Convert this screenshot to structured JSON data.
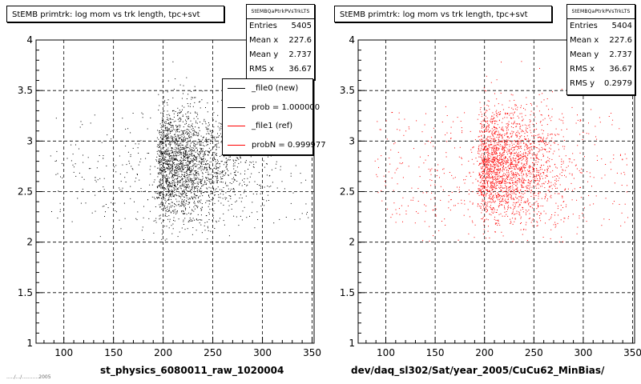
{
  "panels": [
    {
      "title": "StEMB primtrk: log mom vs trk length, tpc+svt",
      "stats_header": "StEMBQaPtrkPVsTrkLTS",
      "stats": [
        {
          "label": "Entries",
          "value": "5405"
        },
        {
          "label": "Mean x",
          "value": "227.6"
        },
        {
          "label": "Mean y",
          "value": "2.737"
        },
        {
          "label": "RMS x",
          "value": "36.67"
        }
      ],
      "legend": [
        {
          "text": "_file0 (new)",
          "color": "#000000"
        },
        {
          "text": "prob = 1.000000",
          "color": "#000000"
        },
        {
          "text": "_file1 (ref)",
          "color": "#ff0000"
        },
        {
          "text": "probN = 0.999977",
          "color": "#ff0000"
        }
      ],
      "xlabel": "st_physics_6080011_raw_1020004"
    },
    {
      "title": "StEMB primtrk: log mom vs trk length, tpc+svt",
      "stats_header": "StEMBQaPtrkPVsTrkLTS",
      "stats": [
        {
          "label": "Entries",
          "value": "5404"
        },
        {
          "label": "Mean x",
          "value": "227.6"
        },
        {
          "label": "Mean y",
          "value": "2.737"
        },
        {
          "label": "RMS x",
          "value": "36.67"
        },
        {
          "label": "RMS y",
          "value": "0.2979"
        }
      ],
      "xlabel": "dev/daq_sl302/Sat/year_2005/CuCu62_MinBias/"
    }
  ],
  "footer": "...../.../...........2005",
  "chart_data": [
    {
      "type": "scatter",
      "series": [
        {
          "name": "_file0 (new)",
          "color": "#000000",
          "entries": 5405,
          "mean_x": 227.6,
          "mean_y": 2.737,
          "rms_x": 36.67
        }
      ],
      "x_ticks": [
        100,
        150,
        200,
        250,
        300,
        350
      ],
      "y_ticks": [
        1,
        1.5,
        2,
        2.5,
        3,
        3.5,
        4
      ],
      "xlim": [
        72,
        352
      ],
      "ylim": [
        1,
        4
      ],
      "grid": true,
      "xlabel": "st_physics_6080011_raw_1020004",
      "ylabel": ""
    },
    {
      "type": "scatter",
      "series": [
        {
          "name": "_file1 (ref)",
          "color": "#ff0000",
          "entries": 5404,
          "mean_x": 227.6,
          "mean_y": 2.737,
          "rms_x": 36.67,
          "rms_y": 0.2979
        }
      ],
      "x_ticks": [
        100,
        150,
        200,
        250,
        300,
        350
      ],
      "y_ticks": [
        1,
        1.5,
        2,
        2.5,
        3,
        3.5,
        4
      ],
      "xlim": [
        72,
        352
      ],
      "ylim": [
        1,
        4
      ],
      "grid": true,
      "xlabel": "dev/daq_sl302/Sat/year_2005/CuCu62_MinBias/",
      "ylabel": ""
    }
  ]
}
